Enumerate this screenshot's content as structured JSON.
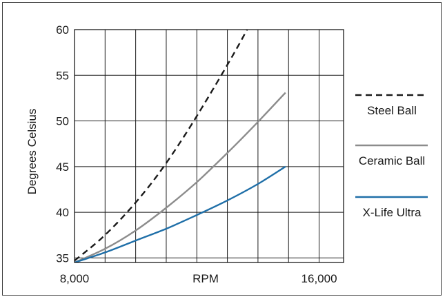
{
  "chart_data": {
    "type": "line",
    "xlabel": "RPM",
    "ylabel": "Degrees Celsius",
    "xlim": [
      8000,
      16800
    ],
    "ylim": [
      34.5,
      60
    ],
    "x_ticks": [
      {
        "value": 8000,
        "label": "8,000"
      },
      {
        "value": 16000,
        "label": "16,000"
      }
    ],
    "y_ticks": [
      35,
      40,
      45,
      50,
      55,
      60
    ],
    "grid": true,
    "legend_position": "right",
    "series": [
      {
        "name": "Steel Ball",
        "style": "dashed",
        "color": "#1a1a1a",
        "points": [
          [
            8000,
            34.7
          ],
          [
            8900,
            37.2
          ],
          [
            9800,
            40.3
          ],
          [
            10700,
            44.0
          ],
          [
            11600,
            48.4
          ],
          [
            12500,
            53.3
          ],
          [
            13400,
            58.5
          ],
          [
            14000,
            62.3
          ]
        ]
      },
      {
        "name": "Ceramic Ball",
        "style": "solid",
        "color": "#8c8c8c",
        "points": [
          [
            8000,
            34.5
          ],
          [
            9000,
            36.0
          ],
          [
            10000,
            38.0
          ],
          [
            11000,
            40.5
          ],
          [
            12000,
            43.3
          ],
          [
            13000,
            46.5
          ],
          [
            14000,
            49.9
          ],
          [
            14900,
            53.1
          ]
        ]
      },
      {
        "name": "X-Life Ultra",
        "style": "solid",
        "color": "#1f6fa8",
        "points": [
          [
            8000,
            34.5
          ],
          [
            9000,
            35.6
          ],
          [
            10000,
            36.9
          ],
          [
            11000,
            38.2
          ],
          [
            12000,
            39.7
          ],
          [
            13000,
            41.3
          ],
          [
            14000,
            43.1
          ],
          [
            14900,
            45.0
          ]
        ]
      }
    ]
  }
}
